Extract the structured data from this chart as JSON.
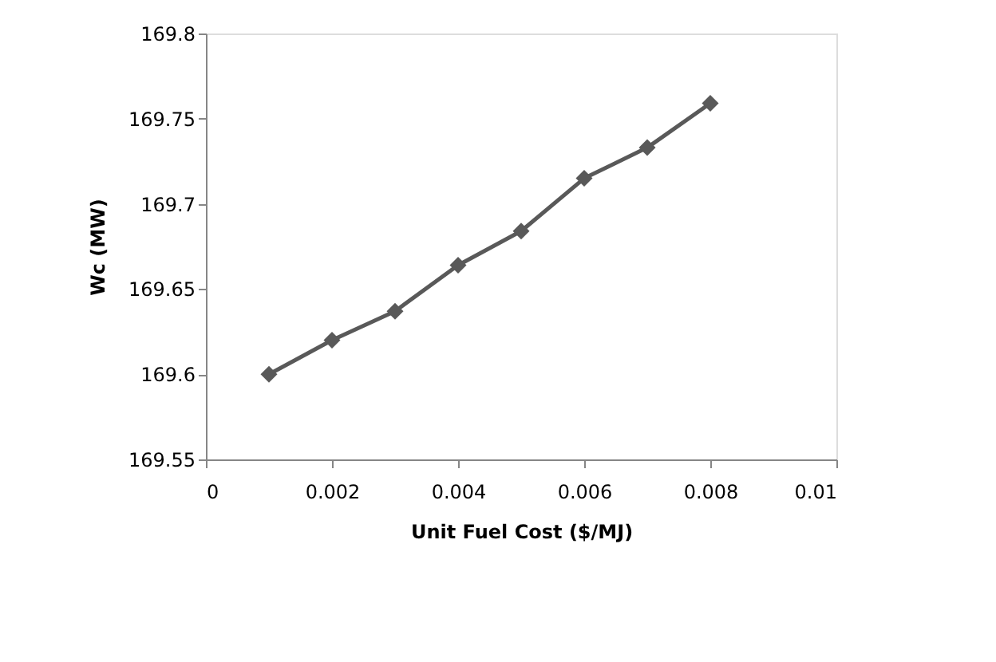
{
  "chart_data": {
    "type": "line",
    "xlabel": "Unit Fuel Cost ($/MJ)",
    "ylabel": "Wc (MW)",
    "x": [
      0.001,
      0.002,
      0.003,
      0.004,
      0.005,
      0.006,
      0.007,
      0.008
    ],
    "series": [
      {
        "color": "#595959",
        "values": [
          169.6,
          169.62,
          169.637,
          169.664,
          169.684,
          169.715,
          169.733,
          169.759
        ]
      }
    ],
    "xlim": [
      0,
      0.01
    ],
    "xticks": [
      0,
      0.002,
      0.004,
      0.006,
      0.008,
      0.01
    ],
    "ylim": [
      169.55,
      169.8
    ],
    "yticks": [
      169.55,
      169.6,
      169.65,
      169.7,
      169.75,
      169.8
    ],
    "grid": false,
    "legend": false,
    "marker": "diamond",
    "line_style": "solid"
  }
}
